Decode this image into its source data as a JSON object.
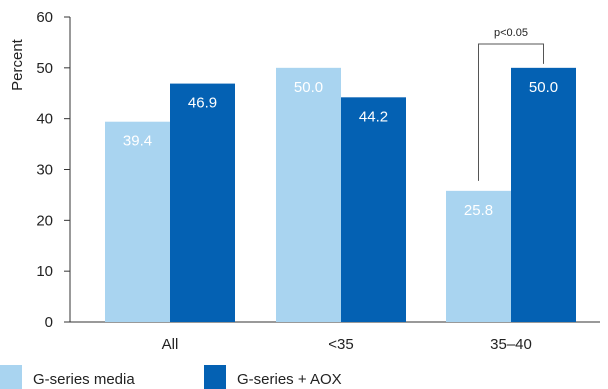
{
  "chart_data": {
    "type": "bar",
    "title": "",
    "xlabel": "",
    "ylabel": "Percent",
    "ylim": [
      0,
      60
    ],
    "yticks": [
      0,
      10,
      20,
      30,
      40,
      50,
      60
    ],
    "grid": false,
    "legend_position": "bottom-left",
    "categories": [
      "All",
      "<35",
      "35–40"
    ],
    "series": [
      {
        "name": "G-series media",
        "color": "#a9d4f0",
        "values": [
          39.4,
          50.0,
          25.8
        ],
        "labels": [
          "39.4",
          "50.0",
          "25.8"
        ]
      },
      {
        "name": "G-series + AOX",
        "color": "#0461b3",
        "values": [
          46.9,
          44.2,
          50.0
        ],
        "labels": [
          "46.9",
          "44.2",
          "50.0"
        ]
      }
    ],
    "annotations": [
      {
        "text": "p<0.05",
        "category_index": 2,
        "type": "significance-bracket"
      }
    ]
  }
}
